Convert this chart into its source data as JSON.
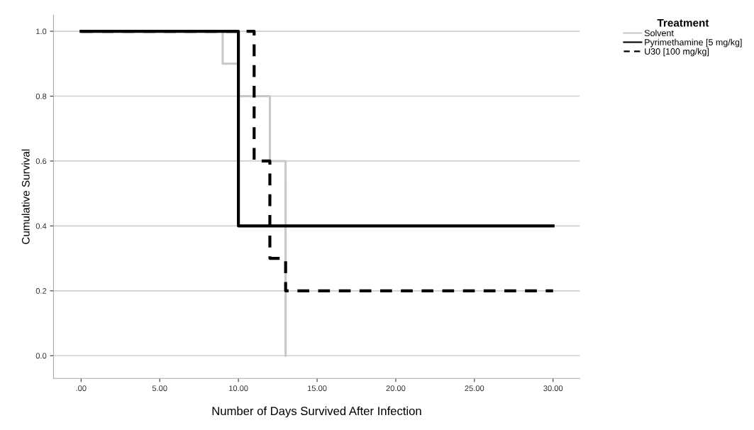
{
  "chart_data": {
    "type": "step",
    "xlabel": "Number of Days Survived After Infection",
    "ylabel": "Cumulative Survival",
    "legend_title": "Treatment",
    "series": [
      {
        "name": "Solvent",
        "color": "#c8c8c8",
        "line_style": "solid",
        "x": [
          0,
          9,
          10,
          12,
          13
        ],
        "values": [
          1.0,
          0.9,
          0.8,
          0.6,
          0.0
        ]
      },
      {
        "name": "Pyrimethamine [5 mg/kg]",
        "color": "#000000",
        "line_style": "solid",
        "x": [
          0,
          10,
          30
        ],
        "values": [
          1.0,
          0.4,
          0.4
        ]
      },
      {
        "name": "U30 [100 mg/kg]",
        "color": "#000000",
        "line_style": "dashed",
        "x": [
          0,
          11,
          12,
          13,
          30
        ],
        "values": [
          1.0,
          0.6,
          0.3,
          0.2,
          0.2
        ]
      }
    ],
    "xlim": [
      -1.75,
      31.7
    ],
    "ylim": [
      -0.07,
      1.05
    ],
    "xticks": [
      {
        "value": 0,
        "label": ".00"
      },
      {
        "value": 5,
        "label": "5.00"
      },
      {
        "value": 10,
        "label": "10.00"
      },
      {
        "value": 15,
        "label": "15.00"
      },
      {
        "value": 20,
        "label": "20.00"
      },
      {
        "value": 25,
        "label": "25.00"
      },
      {
        "value": 30,
        "label": "30.00"
      }
    ],
    "yticks": [
      {
        "value": 0,
        "label": "0.0"
      },
      {
        "value": 0.2,
        "label": "0.2"
      },
      {
        "value": 0.4,
        "label": "0.4"
      },
      {
        "value": 0.6,
        "label": "0.6"
      },
      {
        "value": 0.8,
        "label": "0.8"
      },
      {
        "value": 1.0,
        "label": "1.0"
      }
    ],
    "grid": "y",
    "legend": "top right"
  }
}
